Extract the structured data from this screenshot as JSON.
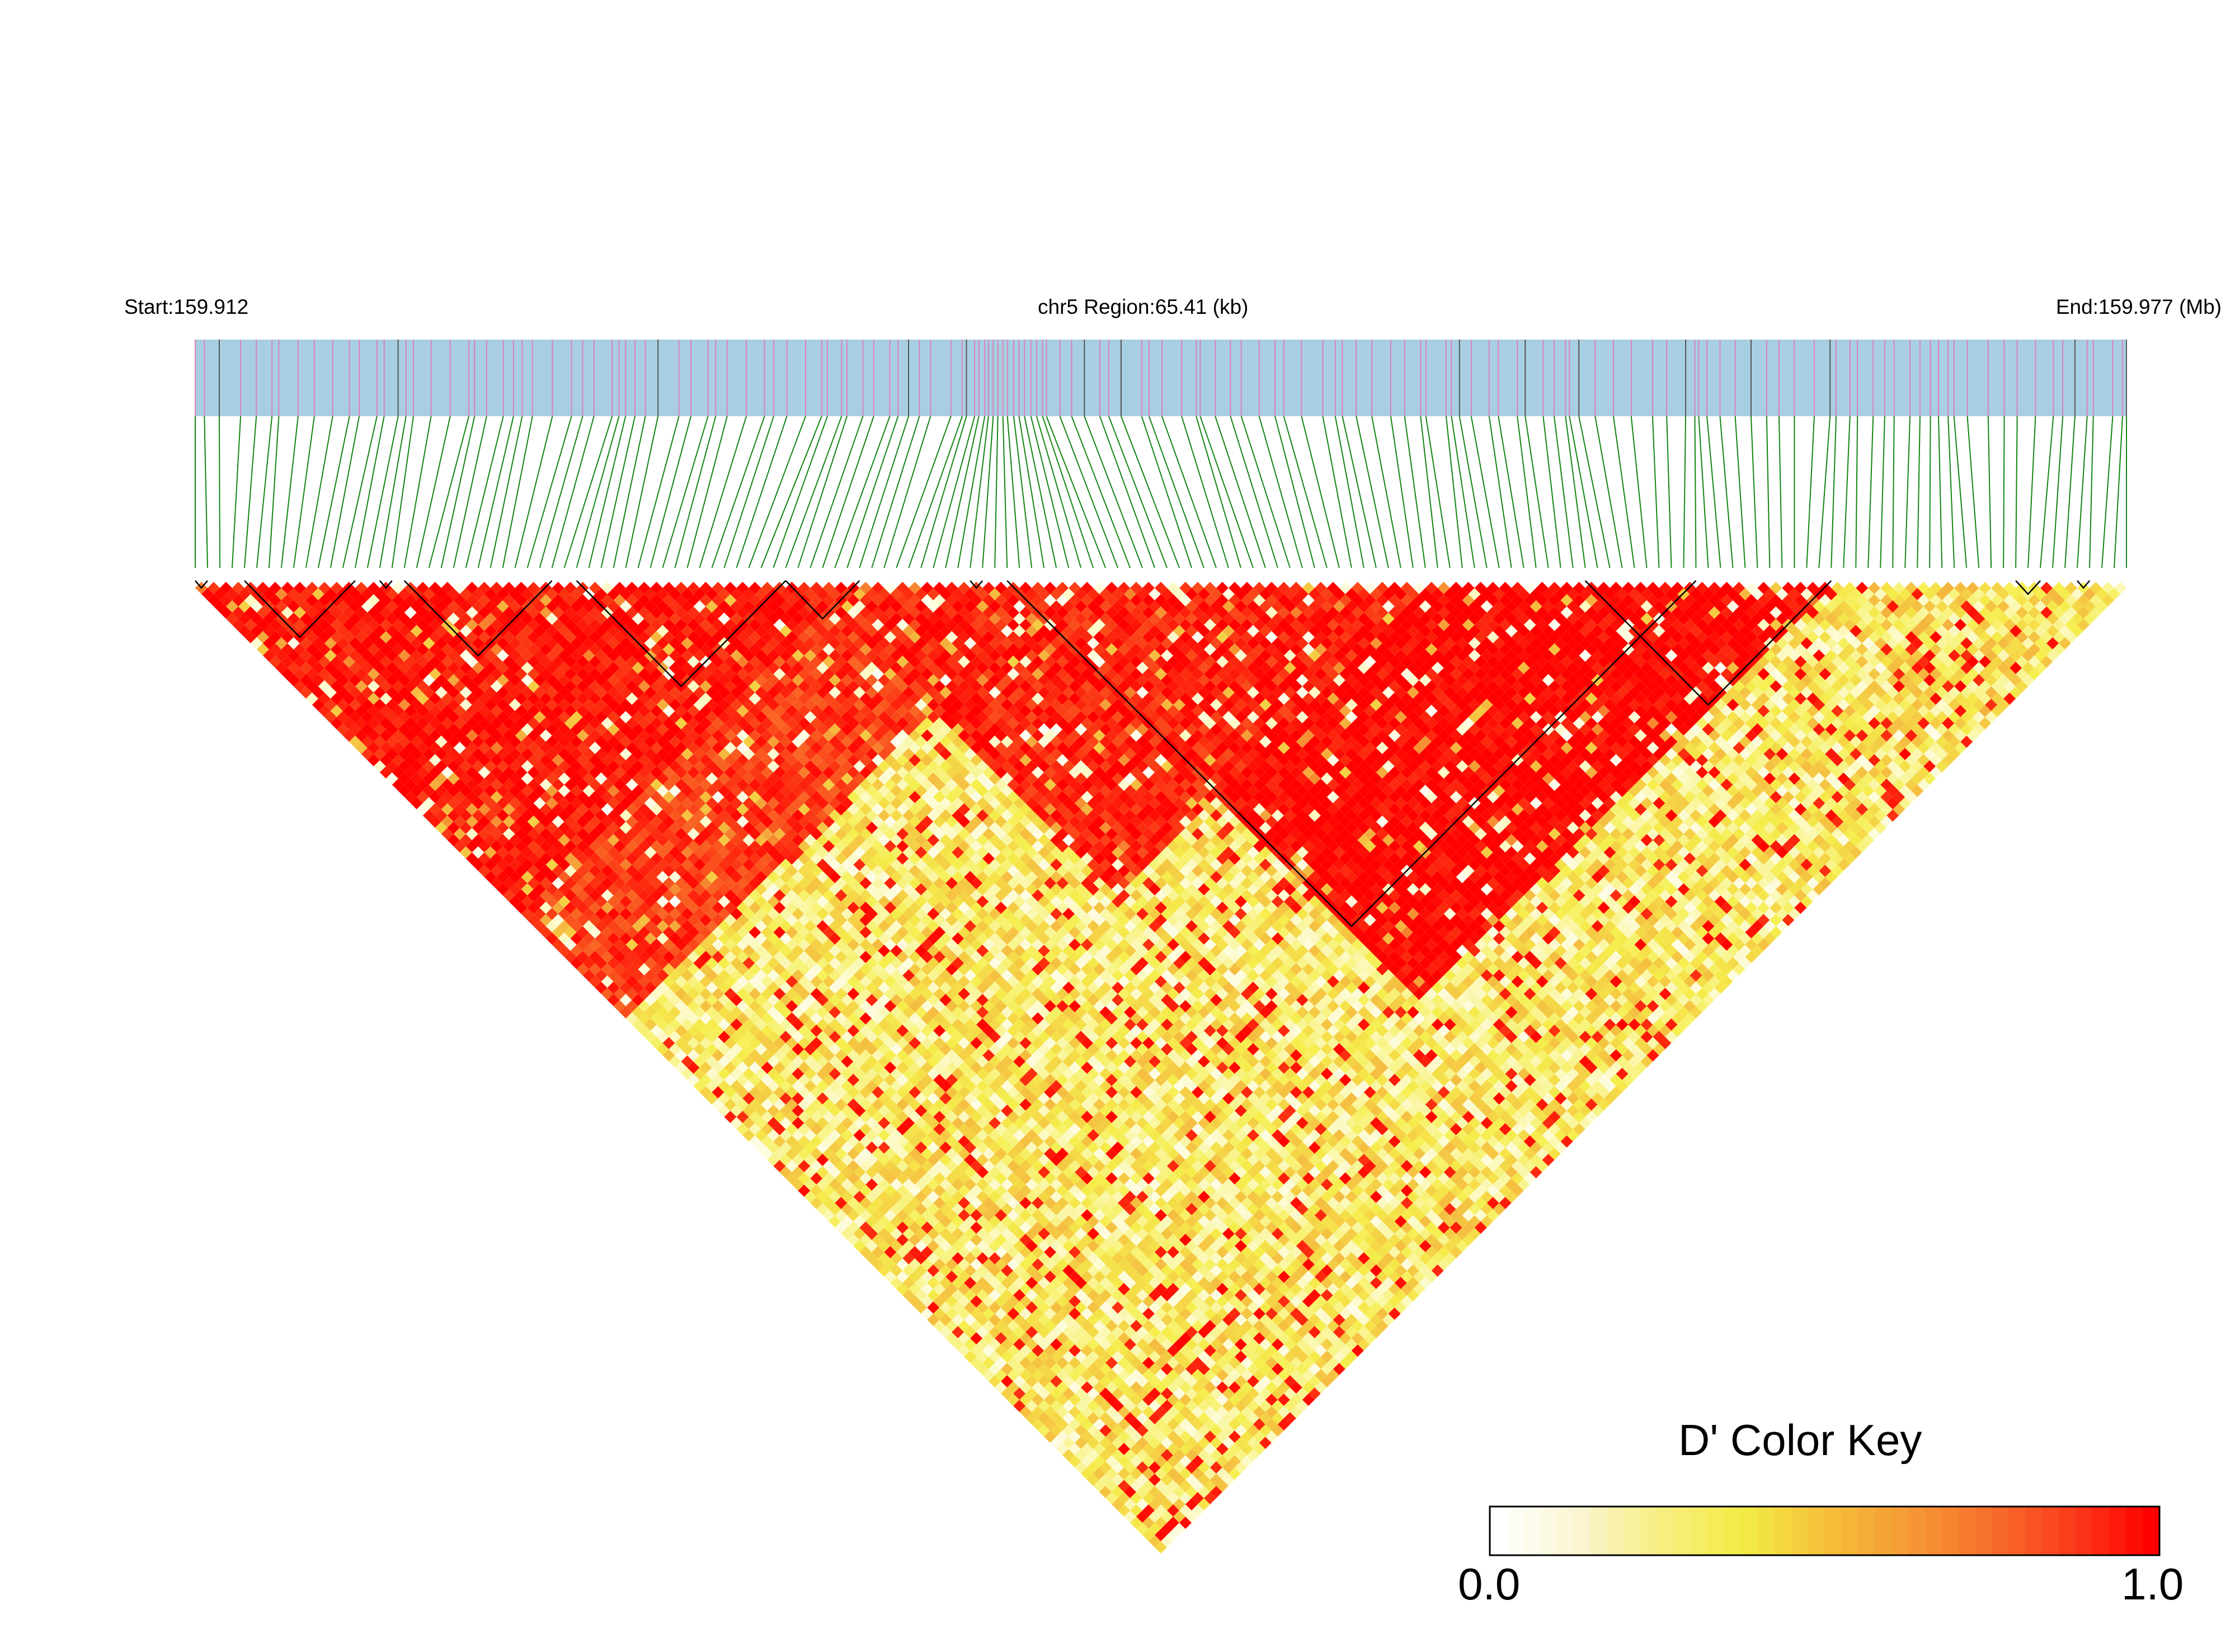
{
  "header": {
    "start_label": "Start:159.912",
    "region_label": "chr5 Region:65.41 (kb)",
    "end_label": "End:159.977 (Mb)"
  },
  "chart_data": {
    "type": "heatmap",
    "subtype": "linkage-disequilibrium-triangle",
    "chromosome": "chr5",
    "start_mb": 159.912,
    "end_mb": 159.977,
    "region_kb": 65.41,
    "snp_count": 158,
    "value_measure": "D'",
    "value_range": [
      0.0,
      1.0
    ],
    "color_scale": [
      "#ffffff",
      "#f5ee4c",
      "#f5a23a",
      "#ff0000"
    ],
    "track_color": "#a7cfe1",
    "snp_marker_color": "#d982bd",
    "connector_color": "#138513",
    "haplotype_blocks": [
      {
        "first_snp": 0,
        "last_snp": 1
      },
      {
        "first_snp": 4,
        "last_snp": 13
      },
      {
        "first_snp": 15,
        "last_snp": 16
      },
      {
        "first_snp": 17,
        "last_snp": 29
      },
      {
        "first_snp": 31,
        "last_snp": 48
      },
      {
        "first_snp": 48,
        "last_snp": 54
      },
      {
        "first_snp": 63,
        "last_snp": 64
      },
      {
        "first_snp": 66,
        "last_snp": 122
      },
      {
        "first_snp": 113,
        "last_snp": 133
      },
      {
        "first_snp": 148,
        "last_snp": 150
      },
      {
        "first_snp": 153,
        "last_snp": 154
      }
    ],
    "ld_regions": [
      {
        "from_snp": 0,
        "to_snp": 53,
        "mean_d_prime": 0.93
      },
      {
        "from_snp": 50,
        "to_snp": 100,
        "mean_d_prime": 0.9
      },
      {
        "from_snp": 66,
        "to_snp": 133,
        "mean_d_prime": 0.97
      },
      {
        "from_snp": 0,
        "to_snp": 70,
        "mean_d_prime": 0.85
      },
      {
        "from_snp": 0,
        "to_snp": 157,
        "mean_d_prime": 0.3
      },
      {
        "from_snp": 133,
        "to_snp": 157,
        "mean_d_prime": 0.35
      }
    ]
  },
  "color_key": {
    "title": "D' Color Key",
    "min_label": "0.0",
    "max_label": "1.0",
    "stops": [
      "#ffffff",
      "#faf5d0",
      "#f7ee80",
      "#f2ec45",
      "#f6c03a",
      "#f59b35",
      "#f7702c",
      "#fb3d1c",
      "#ff0000"
    ]
  }
}
